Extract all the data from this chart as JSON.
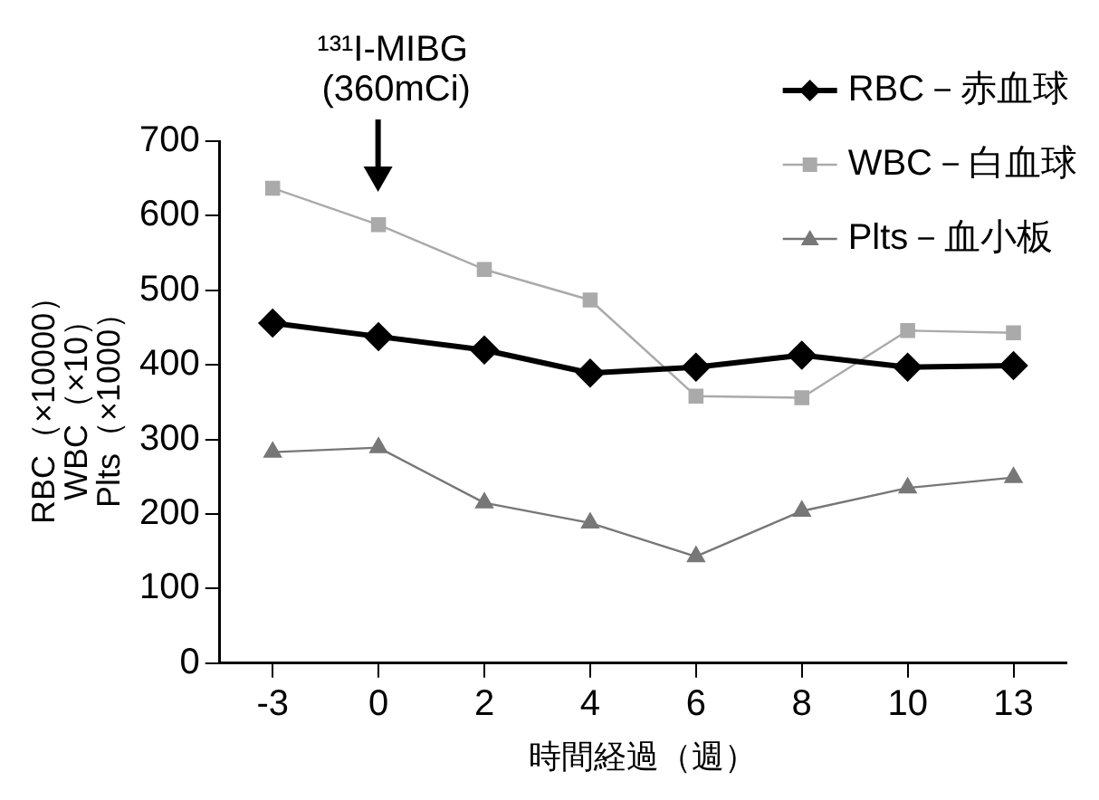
{
  "chart_data": {
    "type": "line",
    "xlabel": "時間経過（週）",
    "ylabel": "RBC（×10000）\nWBC（×10）\nPlts（×1000）",
    "categories": [
      "-3",
      "0",
      "2",
      "4",
      "6",
      "8",
      "10",
      "13"
    ],
    "series": [
      {
        "name": "RBC－赤血球",
        "color": "#000000",
        "marker": "diamond",
        "values": [
          456,
          438,
          420,
          389,
          397,
          413,
          397,
          399
        ]
      },
      {
        "name": "WBC－白血球",
        "color": "#aaaaaa",
        "marker": "square",
        "values": [
          637,
          588,
          528,
          487,
          358,
          356,
          446,
          443
        ]
      },
      {
        "name": "Plts－血小板",
        "color": "#777777",
        "marker": "triangle",
        "values": [
          283,
          289,
          215,
          188,
          143,
          204,
          235,
          249
        ]
      }
    ],
    "ylim": [
      0,
      700
    ],
    "yticks": [
      0,
      100,
      200,
      300,
      400,
      500,
      600,
      700
    ],
    "grid": false,
    "legend": "top right",
    "line_style": "solid",
    "annotations": [
      "¹³¹I-MIBG\n(360mCi)"
    ]
  }
}
